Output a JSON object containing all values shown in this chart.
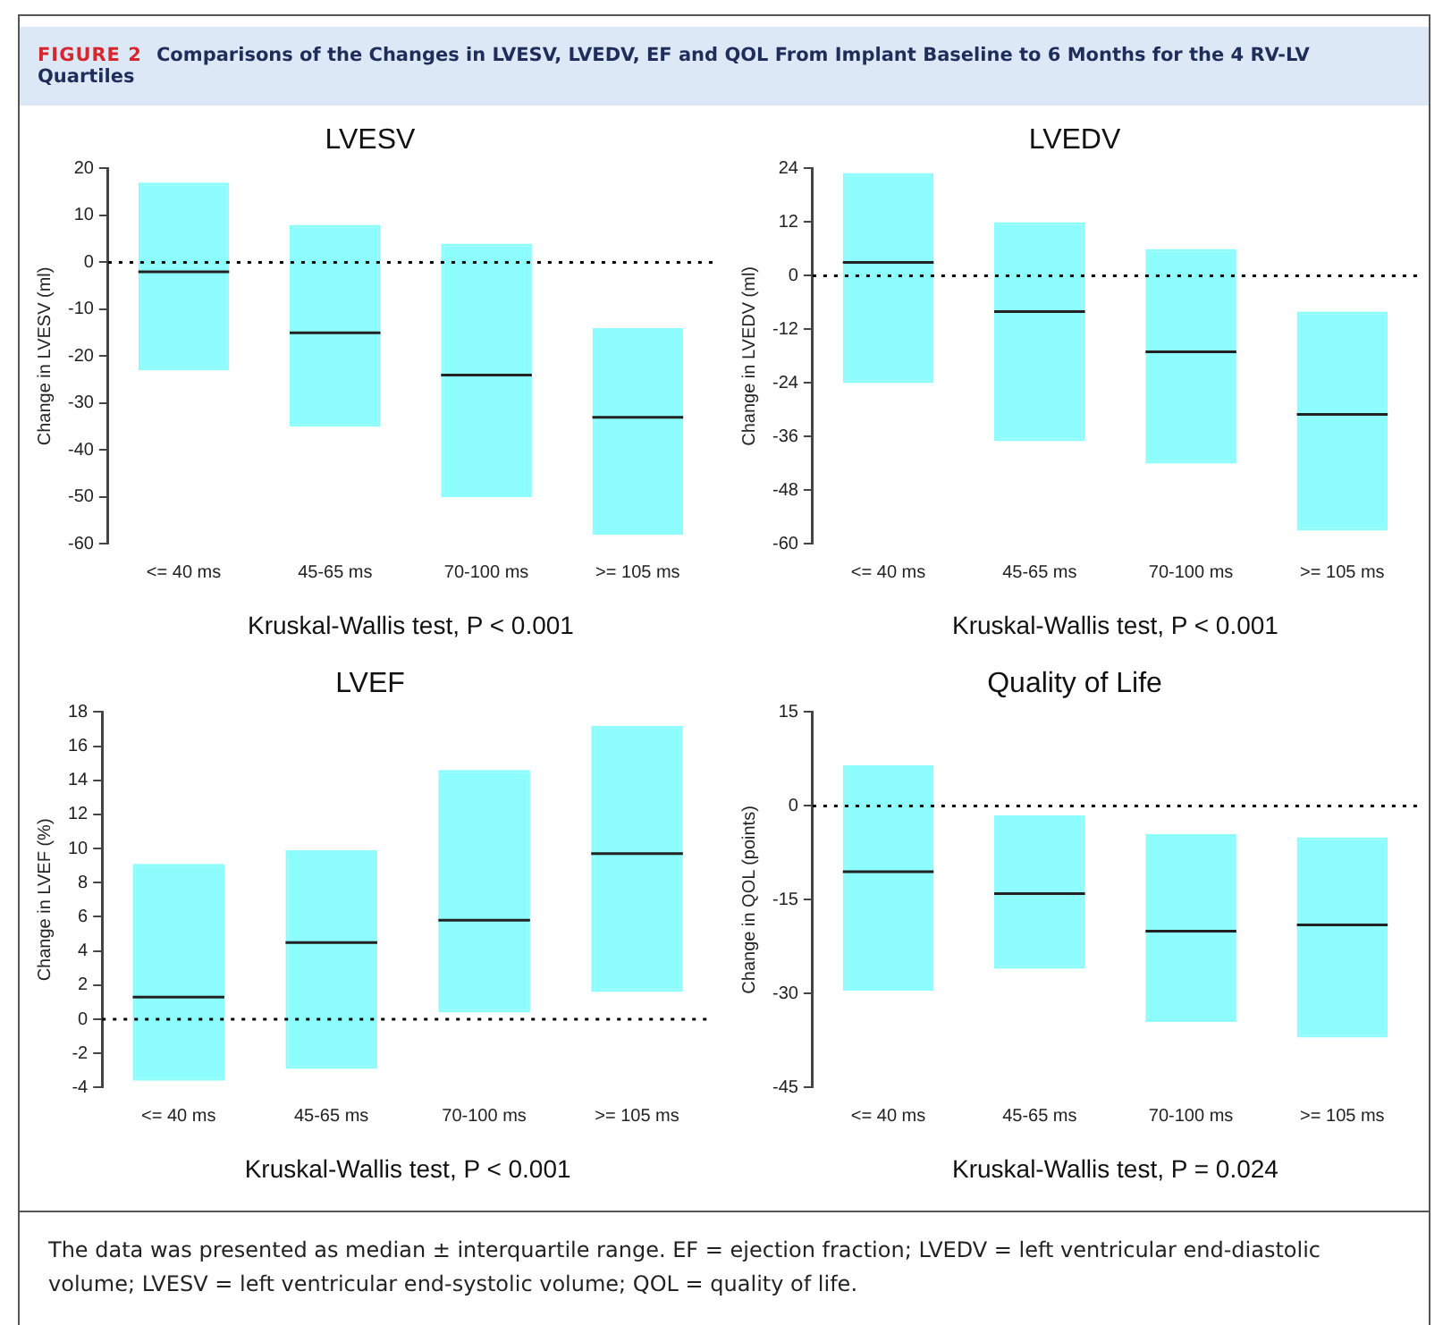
{
  "chart_data": [
    {
      "type": "other",
      "title": "Comparisons of the Changes in LVESV, LVEDV, EF and QOL From Implant Baseline to 6 Months for the 4 RV-LV Quartiles",
      "annotations": [
        "FIGURE 2"
      ]
    },
    {
      "type": "box",
      "title": "LVESV",
      "ylabel": "Change in LVESV (ml)",
      "xlabel": "Kruskal-Wallis test, P < 0.001",
      "categories": [
        "<= 40 ms",
        "45-65 ms",
        "70-100 ms",
        ">= 105 ms"
      ],
      "color": "#8cfcfc",
      "grid": false,
      "ylim": [
        -60,
        20
      ],
      "yticks": [
        -60,
        -50,
        -40,
        -30,
        -20,
        -10,
        0,
        10,
        20
      ],
      "boxes": [
        {
          "low": -23,
          "q1": -23,
          "median": -2,
          "q3": 17,
          "high": 17
        },
        {
          "low": -35,
          "q1": -35,
          "median": -15,
          "q3": 8,
          "high": 8
        },
        {
          "low": -50,
          "q1": -50,
          "median": -24,
          "q3": 4,
          "high": 4
        },
        {
          "low": -58,
          "q1": -58,
          "median": -33,
          "q3": -14,
          "high": -14
        }
      ],
      "ref_lines": [
        {
          "axis": "y",
          "value": 0,
          "line_style": "dotted"
        }
      ]
    },
    {
      "type": "box",
      "title": "LVEDV",
      "ylabel": "Change in LVEDV (ml)",
      "xlabel": "Kruskal-Wallis test, P < 0.001",
      "categories": [
        "<= 40 ms",
        "45-65 ms",
        "70-100 ms",
        ">= 105 ms"
      ],
      "color": "#8cfcfc",
      "grid": false,
      "ylim": [
        -60,
        24
      ],
      "yticks": [
        -60,
        -48,
        -36,
        -24,
        -12,
        0,
        12,
        24
      ],
      "boxes": [
        {
          "low": -24,
          "q1": -24,
          "median": 3,
          "q3": 23,
          "high": 23
        },
        {
          "low": -37,
          "q1": -37,
          "median": -8,
          "q3": 12,
          "high": 12
        },
        {
          "low": -42,
          "q1": -42,
          "median": -17,
          "q3": 6,
          "high": 6
        },
        {
          "low": -57,
          "q1": -57,
          "median": -31,
          "q3": -8,
          "high": -8
        }
      ],
      "ref_lines": [
        {
          "axis": "y",
          "value": 0,
          "line_style": "dotted"
        }
      ]
    },
    {
      "type": "box",
      "title": "LVEF",
      "ylabel": "Change in LVEF (%)",
      "xlabel": "Kruskal-Wallis test, P < 0.001",
      "categories": [
        "<= 40 ms",
        "45-65 ms",
        "70-100 ms",
        ">= 105 ms"
      ],
      "color": "#8cfcfc",
      "grid": false,
      "ylim": [
        -4,
        18
      ],
      "yticks": [
        -4,
        -2,
        0,
        2,
        4,
        6,
        8,
        10,
        12,
        14,
        16,
        18
      ],
      "boxes": [
        {
          "low": -3.6,
          "q1": -3.6,
          "median": 1.3,
          "q3": 9.1,
          "high": 9.1
        },
        {
          "low": -2.9,
          "q1": -2.9,
          "median": 4.5,
          "q3": 9.9,
          "high": 9.9
        },
        {
          "low": 0.4,
          "q1": 0.4,
          "median": 5.8,
          "q3": 14.6,
          "high": 14.6
        },
        {
          "low": 1.6,
          "q1": 1.6,
          "median": 9.7,
          "q3": 17.2,
          "high": 17.2
        }
      ],
      "ref_lines": [
        {
          "axis": "y",
          "value": 0,
          "line_style": "dotted"
        }
      ]
    },
    {
      "type": "box",
      "title": "Quality of Life",
      "ylabel": "Change in QOL (points)",
      "xlabel": "Kruskal-Wallis test, P = 0.024",
      "categories": [
        "<= 40 ms",
        "45-65 ms",
        "70-100 ms",
        ">= 105 ms"
      ],
      "color": "#8cfcfc",
      "grid": false,
      "ylim": [
        -45,
        15
      ],
      "yticks": [
        -45,
        -30,
        -15,
        0,
        15
      ],
      "boxes": [
        {
          "low": -29.5,
          "q1": -29.5,
          "median": -10.5,
          "q3": 6.5,
          "high": 6.5
        },
        {
          "low": -26,
          "q1": -26,
          "median": -14,
          "q3": -1.5,
          "high": -1.5
        },
        {
          "low": -34.5,
          "q1": -34.5,
          "median": -20,
          "q3": -4.5,
          "high": -4.5
        },
        {
          "low": -37,
          "q1": -37,
          "median": -19,
          "q3": -5,
          "high": -5
        }
      ],
      "ref_lines": [
        {
          "axis": "y",
          "value": 0,
          "line_style": "dotted"
        }
      ]
    },
    {
      "type": "other",
      "annotations": [
        "The data was presented as median ± interquartile range. EF = ejection fraction; LVEDV = left ventricular end-diastolic volume; LVESV = left ventricular end-systolic volume; QOL = quality of life."
      ]
    }
  ]
}
